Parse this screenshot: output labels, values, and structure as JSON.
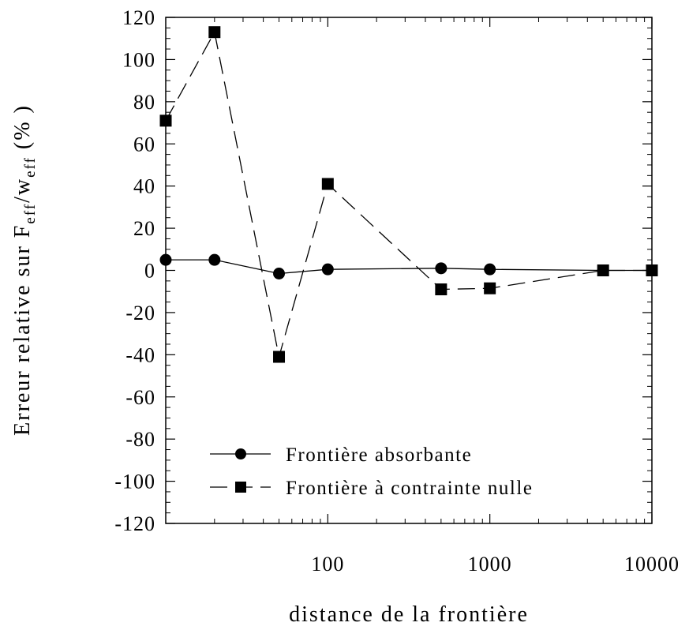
{
  "chart_data": {
    "type": "line",
    "x_scale": "log",
    "xlabel": "distance de la frontière",
    "ylabel_parts": {
      "prefix": "Erreur relative sur F",
      "sub1": "eff",
      "mid": "/w",
      "sub2": "eff",
      "suffix": "  (% )"
    },
    "xlim": [
      10,
      10000
    ],
    "ylim": [
      -120,
      120
    ],
    "x_ticks": [
      100,
      1000,
      10000
    ],
    "x_tick_labels": [
      "100",
      "1000",
      "10000"
    ],
    "y_ticks": [
      -120,
      -100,
      -80,
      -60,
      -40,
      -20,
      0,
      20,
      40,
      60,
      80,
      100,
      120
    ],
    "y_tick_labels": [
      "-120",
      "-100",
      "-80",
      "-60",
      "-40",
      "-20",
      "0",
      "20",
      "40",
      "60",
      "80",
      "100",
      "120"
    ],
    "grid": false,
    "legend_position": "bottom-left",
    "series": [
      {
        "name": "Frontière absorbante",
        "marker": "circle",
        "line": "solid",
        "x": [
          10,
          20,
          50,
          100,
          500,
          1000,
          5000,
          10000
        ],
        "y": [
          5,
          5,
          -1.5,
          0.5,
          1,
          0.5,
          0,
          0
        ]
      },
      {
        "name": "Frontière à contrainte nulle",
        "marker": "square",
        "line": "dashed",
        "x": [
          10,
          20,
          50,
          100,
          500,
          1000,
          5000,
          10000
        ],
        "y": [
          71,
          113,
          -41,
          41,
          -9,
          -8.5,
          0,
          0
        ]
      }
    ]
  }
}
